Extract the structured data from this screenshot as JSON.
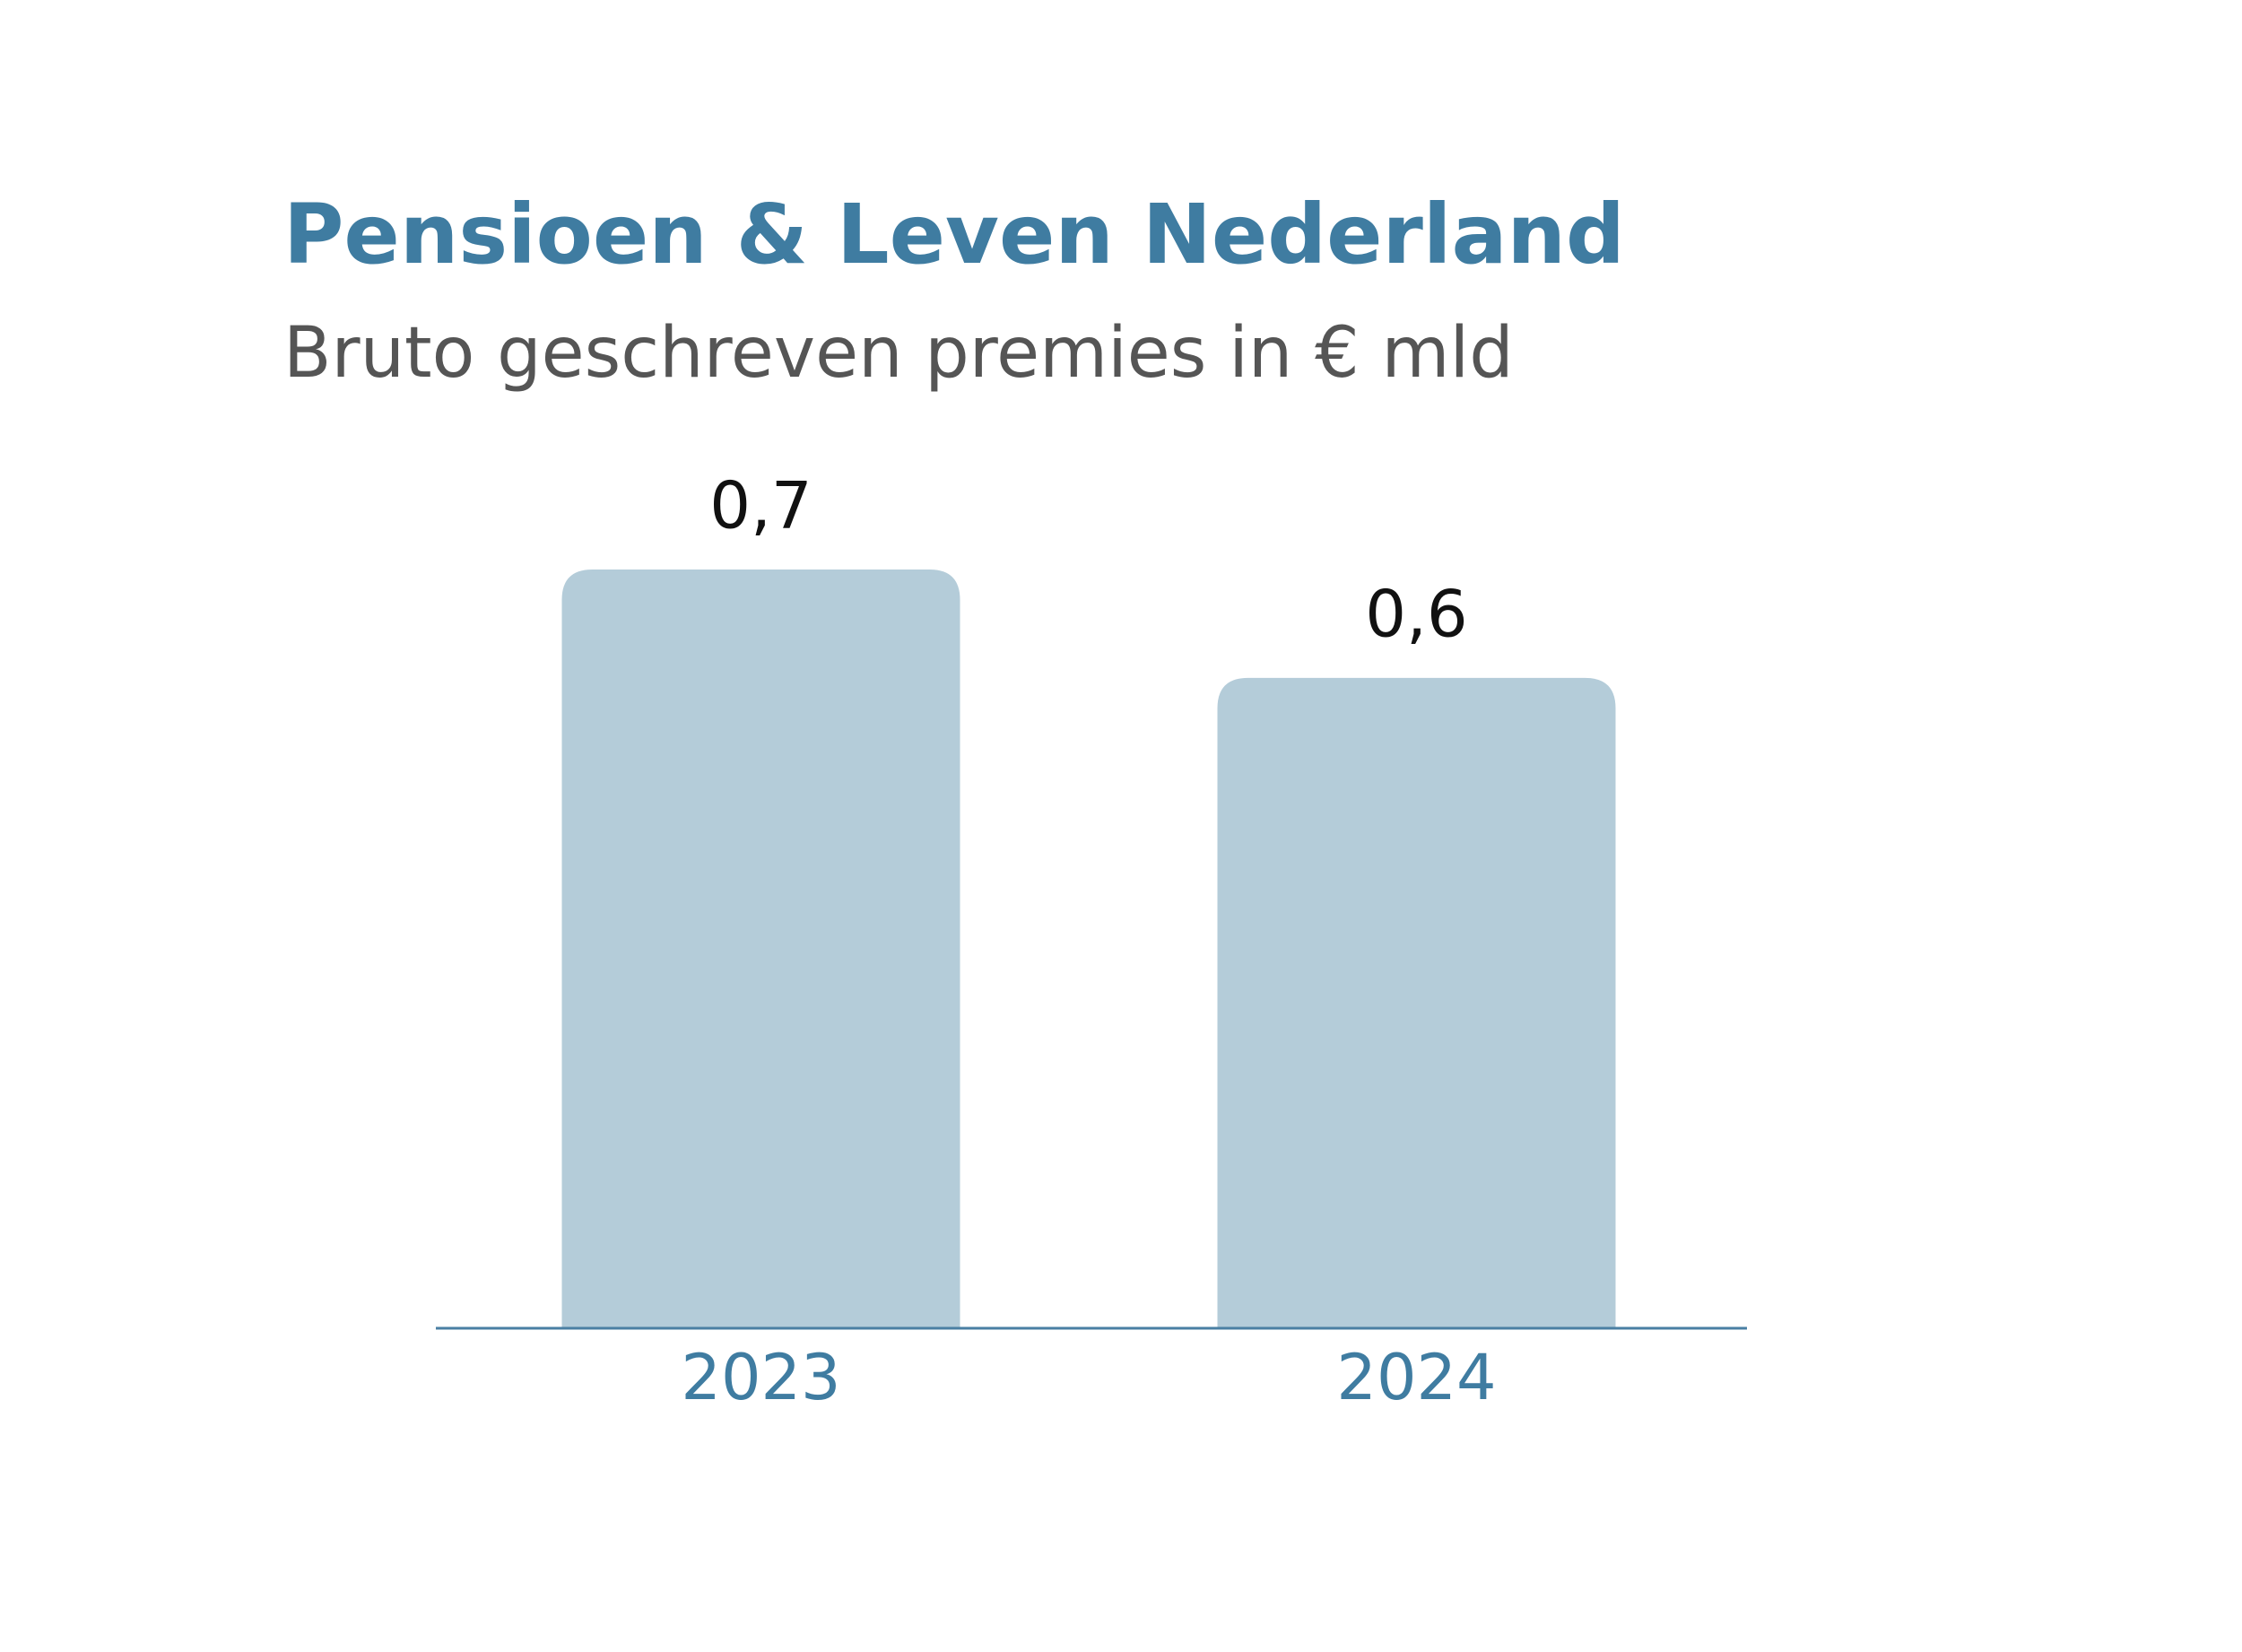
{
  "chart_data": {
    "type": "bar",
    "title": "Pensioen & Leven Nederland",
    "subtitle": "Bruto geschreven premies in € mld",
    "categories": [
      "2023",
      "2024"
    ],
    "values": [
      0.7,
      0.6
    ],
    "value_labels": [
      "0,7",
      "0,6"
    ],
    "color": "#b4ccd9",
    "axis_color": "#4a7fa3",
    "ylim": [
      0,
      0.7
    ],
    "grid": false
  }
}
